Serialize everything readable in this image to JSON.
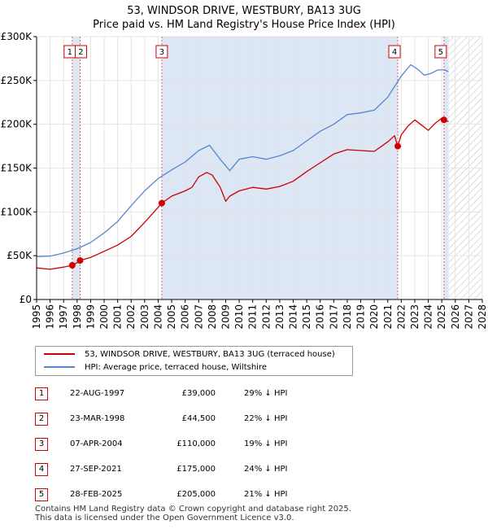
{
  "title_line1": "53, WINDSOR DRIVE, WESTBURY, BA13 3UG",
  "title_line2": "Price paid vs. HM Land Registry's House Price Index (HPI)",
  "legend": {
    "property_label": "53, WINDSOR DRIVE, WESTBURY, BA13 3UG (terraced house)",
    "hpi_label": "HPI: Average price, terraced house, Wiltshire"
  },
  "colors": {
    "property": "#cc0000",
    "hpi": "#5588cc",
    "band": "#dde6f5",
    "marker_line": "#e06666"
  },
  "sales": [
    {
      "num": "1",
      "date": "22-AUG-1997",
      "price": "£39,000",
      "diff": "29% ↓ HPI"
    },
    {
      "num": "2",
      "date": "23-MAR-1998",
      "price": "£44,500",
      "diff": "22% ↓ HPI"
    },
    {
      "num": "3",
      "date": "07-APR-2004",
      "price": "£110,000",
      "diff": "19% ↓ HPI"
    },
    {
      "num": "4",
      "date": "27-SEP-2021",
      "price": "£175,000",
      "diff": "24% ↓ HPI"
    },
    {
      "num": "5",
      "date": "28-FEB-2025",
      "price": "£205,000",
      "diff": "21% ↓ HPI"
    }
  ],
  "footer_line1": "Contains HM Land Registry data © Crown copyright and database right 2025.",
  "footer_line2": "This data is licensed under the Open Government Licence v3.0.",
  "chart_data": {
    "type": "line",
    "title": "53, WINDSOR DRIVE, WESTBURY, BA13 3UG — Price paid vs. HM Land Registry's House Price Index (HPI)",
    "xlim": [
      1995,
      2028
    ],
    "ylim": [
      0,
      300000
    ],
    "x_ticks": [
      "1995",
      "1996",
      "1997",
      "1998",
      "1999",
      "2000",
      "2001",
      "2002",
      "2003",
      "2004",
      "2005",
      "2006",
      "2007",
      "2008",
      "2009",
      "2010",
      "2011",
      "2012",
      "2013",
      "2014",
      "2015",
      "2016",
      "2017",
      "2018",
      "2019",
      "2020",
      "2021",
      "2022",
      "2023",
      "2024",
      "2025",
      "2026",
      "2027",
      "2028"
    ],
    "y_ticks": [
      {
        "value": 0,
        "label": "£0"
      },
      {
        "value": 50000,
        "label": "£50K"
      },
      {
        "value": 100000,
        "label": "£100K"
      },
      {
        "value": 150000,
        "label": "£150K"
      },
      {
        "value": 200000,
        "label": "£200K"
      },
      {
        "value": 250000,
        "label": "£250K"
      },
      {
        "value": 300000,
        "label": "£300K"
      }
    ],
    "forecast_from": 2025.5,
    "sale_events": [
      {
        "num": "1",
        "x": 1997.64,
        "price": 39000
      },
      {
        "num": "2",
        "x": 1998.22,
        "price": 44500
      },
      {
        "num": "3",
        "x": 2004.27,
        "price": 110000
      },
      {
        "num": "4",
        "x": 2021.74,
        "price": 175000
      },
      {
        "num": "5",
        "x": 2025.16,
        "price": 205000
      }
    ],
    "shaded_intervals": [
      [
        1997.64,
        1998.22
      ],
      [
        2004.27,
        2021.74
      ],
      [
        2025.16,
        2025.5
      ]
    ],
    "series": [
      {
        "name": "53, WINDSOR DRIVE, WESTBURY, BA13 3UG (terraced house)",
        "x": [
          1995,
          1996,
          1997,
          1997.64,
          1998,
          1998.22,
          1999,
          2000,
          2001,
          2002,
          2003,
          2003.7,
          2004.27,
          2005,
          2006,
          2006.5,
          2007,
          2007.6,
          2008,
          2008.6,
          2009,
          2009.3,
          2010,
          2011,
          2012,
          2013,
          2014,
          2015,
          2016,
          2017,
          2018,
          2019,
          2020,
          2021,
          2021.5,
          2021.74,
          2022,
          2022.5,
          2023,
          2023.5,
          2024,
          2024.5,
          2025,
          2025.16,
          2025.5
        ],
        "y": [
          36000,
          34500,
          37000,
          39000,
          42000,
          44500,
          48000,
          55000,
          62000,
          72000,
          88000,
          100000,
          110000,
          118000,
          124000,
          128000,
          140000,
          145000,
          142000,
          128000,
          112000,
          118000,
          124000,
          128000,
          126000,
          129000,
          135000,
          146000,
          156000,
          166000,
          171000,
          170000,
          169000,
          180000,
          187000,
          175000,
          188000,
          198000,
          205000,
          199000,
          193000,
          201000,
          207000,
          205000,
          203000
        ]
      },
      {
        "name": "HPI: Average price, terraced house, Wiltshire",
        "x": [
          1995,
          1996,
          1997,
          1998,
          1999,
          2000,
          2001,
          2002,
          2003,
          2004,
          2005,
          2006,
          2007,
          2007.8,
          2008.6,
          2009.3,
          2010,
          2011,
          2012,
          2013,
          2014,
          2015,
          2016,
          2017,
          2018,
          2019,
          2020,
          2021,
          2022,
          2022.7,
          2023.2,
          2023.7,
          2024.2,
          2024.7,
          2025.2,
          2025.5
        ],
        "y": [
          49000,
          49500,
          53000,
          58000,
          65000,
          76000,
          89000,
          107000,
          124000,
          138000,
          148000,
          157000,
          170000,
          176000,
          160000,
          147000,
          160000,
          163000,
          160000,
          164000,
          170000,
          181000,
          192000,
          200000,
          211000,
          213000,
          216000,
          231000,
          255000,
          268000,
          263000,
          256000,
          258000,
          262000,
          262000,
          260000
        ]
      }
    ]
  }
}
